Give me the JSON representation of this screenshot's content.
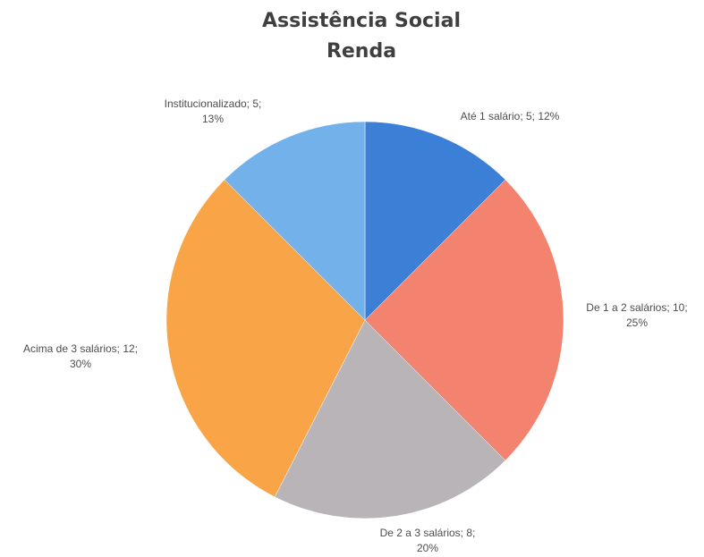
{
  "chart_data": {
    "type": "pie",
    "title": [
      "Assistência Social",
      "Renda"
    ],
    "slices": [
      {
        "label": "Até 1 salário",
        "value": 5,
        "percent": "12%",
        "label_lines": [
          "Até 1 salário; 5; 12%"
        ],
        "color": "#3c7fd6"
      },
      {
        "label": "De 1 a 2 salários",
        "value": 10,
        "percent": "25%",
        "label_lines": [
          "De 1 a 2 salários; 10;",
          "25%"
        ],
        "color": "#f3836f"
      },
      {
        "label": "De 2 a 3 salários",
        "value": 8,
        "percent": "20%",
        "label_lines": [
          "De 2 a 3 salários; 8;",
          "20%"
        ],
        "color": "#b9b4b8"
      },
      {
        "label": "Acima de 3 salários",
        "value": 12,
        "percent": "30%",
        "label_lines": [
          "Acima de 3 salários; 12;",
          "30%"
        ],
        "color": "#f8a447"
      },
      {
        "label": "Institucionalizado",
        "value": 5,
        "percent": "13%",
        "label_lines": [
          "Institucionalizado; 5;",
          "13%"
        ],
        "color": "#72b1ea"
      }
    ],
    "start_angle_deg": 0,
    "direction": "clockwise",
    "legend": "none"
  }
}
